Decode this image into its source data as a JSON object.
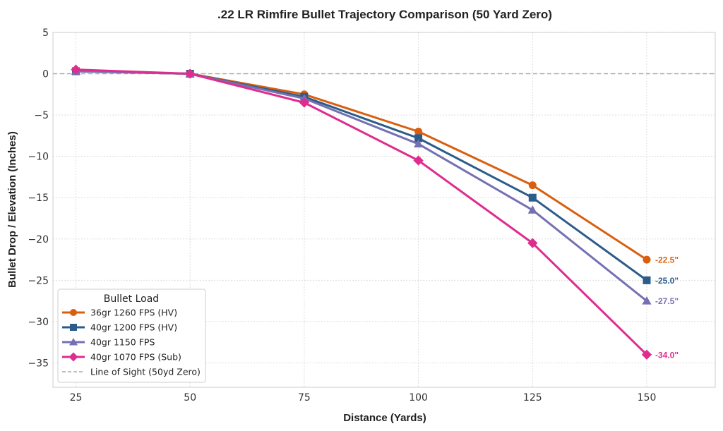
{
  "chart_data": {
    "type": "line",
    "title": ".22 LR Rimfire Bullet Trajectory Comparison (50 Yard Zero)",
    "xlabel": "Distance (Yards)",
    "ylabel": "Bullet Drop / Elevation (Inches)",
    "x": [
      25,
      50,
      75,
      100,
      125,
      150
    ],
    "xticks": [
      "25",
      "50",
      "75",
      "100",
      "125",
      "150"
    ],
    "xlim": [
      20,
      165
    ],
    "yticks": [
      "5",
      "0",
      "−5",
      "−10",
      "−15",
      "−20",
      "−25",
      "−30",
      "−35"
    ],
    "ytick_values": [
      5,
      0,
      -5,
      -10,
      -15,
      -20,
      -25,
      -30,
      -35
    ],
    "ylim": [
      -38,
      5
    ],
    "grid": true,
    "legend_title": "Bullet Load",
    "legend_position": "lower-left",
    "series": [
      {
        "name": "36gr 1260 FPS (HV)",
        "values": [
          0.3,
          0,
          -2.5,
          -7.0,
          -13.5,
          -22.5
        ],
        "color": "#d95f0e",
        "marker": "circle",
        "end_label": "-22.5\""
      },
      {
        "name": "40gr 1200 FPS (HV)",
        "values": [
          0.3,
          0,
          -2.8,
          -7.8,
          -15.0,
          -25.0
        ],
        "color": "#2b5c8a",
        "marker": "square",
        "end_label": "-25.0\""
      },
      {
        "name": "40gr 1150 FPS",
        "values": [
          0.3,
          0,
          -3.0,
          -8.5,
          -16.5,
          -27.5
        ],
        "color": "#7570b3",
        "marker": "triangle",
        "end_label": "-27.5\""
      },
      {
        "name": "40gr 1070 FPS (Sub)",
        "values": [
          0.5,
          0,
          -3.5,
          -10.5,
          -20.5,
          -34.0
        ],
        "color": "#de2d8f",
        "marker": "diamond",
        "end_label": "-34.0\""
      }
    ],
    "reference_line": {
      "name": "Line of Sight (50yd Zero)",
      "y": 0,
      "color": "#aaaaaa",
      "style": "dashed"
    }
  }
}
